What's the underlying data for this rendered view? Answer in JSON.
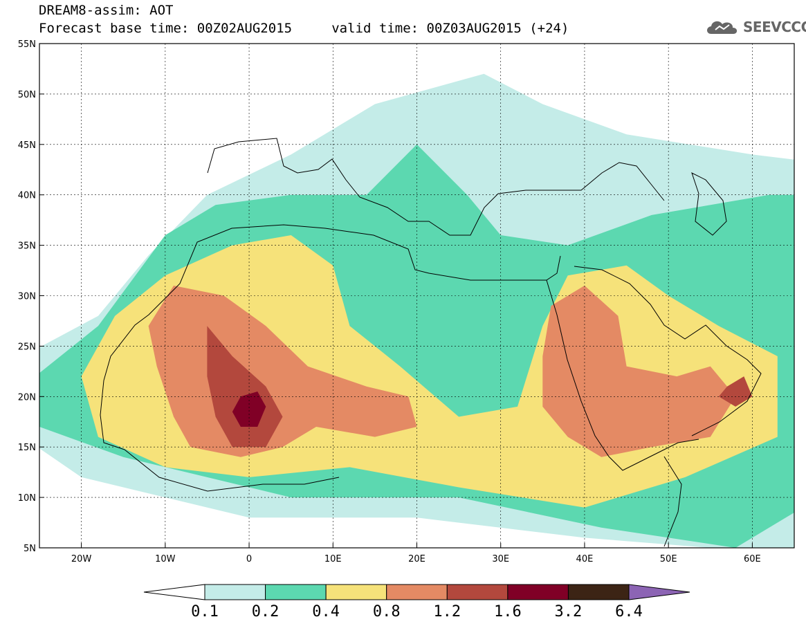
{
  "title": {
    "line1": "DREAM8-assim: AOT",
    "line2": "Forecast base time: 00Z02AUG2015     valid time: 00Z03AUG2015 (+24)"
  },
  "logo": {
    "text": "SEEVCCC",
    "icon": "cloud-icon"
  },
  "map": {
    "lon_range": [
      -25,
      65
    ],
    "lat_range": [
      5,
      55
    ],
    "x_ticks": [
      "20W",
      "10W",
      "0",
      "10E",
      "20E",
      "30E",
      "40E",
      "50E",
      "60E"
    ],
    "y_ticks": [
      "55N",
      "50N",
      "45N",
      "40N",
      "35N",
      "30N",
      "25N",
      "20N",
      "15N",
      "10N",
      "5N"
    ],
    "grid": true
  },
  "colorbar": {
    "labels": [
      "0.1",
      "0.2",
      "0.4",
      "0.8",
      "1.2",
      "1.6",
      "3.2",
      "6.4"
    ],
    "colors": [
      "#ffffff",
      "#c4ece8",
      "#5cd8b0",
      "#f6e27a",
      "#e48a64",
      "#b3483d",
      "#800026",
      "#3c2415",
      "#8c64b4"
    ]
  },
  "chart_data": {
    "type": "heatmap",
    "title": "DREAM8-assim: AOT",
    "subtitle": "Forecast base time: 00Z02AUG2015     valid time: 00Z03AUG2015 (+24)",
    "xlabel": "",
    "ylabel": "",
    "xlim": [
      -25,
      65
    ],
    "ylim": [
      5,
      55
    ],
    "levels": [
      0.1,
      0.2,
      0.4,
      0.8,
      1.2,
      1.6,
      3.2,
      6.4
    ],
    "regions": [
      {
        "level_index": 0,
        "name": "",
        "lonlat": [
          [
            -27,
            24
          ],
          [
            -18,
            28
          ],
          [
            -12,
            34
          ],
          [
            -5,
            40
          ],
          [
            5,
            44
          ],
          [
            15,
            49
          ],
          [
            28,
            52
          ],
          [
            35,
            49
          ],
          [
            45,
            46
          ],
          [
            60,
            44
          ],
          [
            70,
            43
          ],
          [
            70,
            5
          ],
          [
            55,
            5
          ],
          [
            40,
            6
          ],
          [
            20,
            8
          ],
          [
            0,
            8
          ],
          [
            -20,
            12
          ],
          [
            -27,
            16
          ]
        ]
      },
      {
        "level_index": 1,
        "name": "",
        "lonlat": [
          [
            -27,
            21
          ],
          [
            -18,
            27
          ],
          [
            -10,
            36
          ],
          [
            -4,
            39
          ],
          [
            5,
            40
          ],
          [
            14,
            40
          ],
          [
            20,
            45
          ],
          [
            26,
            40
          ],
          [
            30,
            36
          ],
          [
            38,
            35
          ],
          [
            48,
            38
          ],
          [
            62,
            40
          ],
          [
            68,
            40
          ],
          [
            68,
            10
          ],
          [
            58,
            5
          ],
          [
            42,
            7
          ],
          [
            25,
            10
          ],
          [
            5,
            10
          ],
          [
            -15,
            14
          ],
          [
            -25,
            17
          ]
        ]
      },
      {
        "level_index": 2,
        "name": "",
        "lonlat": [
          [
            -20,
            22
          ],
          [
            -16,
            28
          ],
          [
            -10,
            32
          ],
          [
            -2,
            35
          ],
          [
            5,
            36
          ],
          [
            10,
            33
          ],
          [
            12,
            27
          ],
          [
            18,
            23
          ],
          [
            25,
            18
          ],
          [
            32,
            19
          ],
          [
            35,
            27
          ],
          [
            38,
            32
          ],
          [
            45,
            33
          ],
          [
            50,
            30
          ],
          [
            56,
            27
          ],
          [
            63,
            24
          ],
          [
            63,
            16
          ],
          [
            52,
            12
          ],
          [
            40,
            9
          ],
          [
            25,
            11
          ],
          [
            12,
            13
          ],
          [
            0,
            12
          ],
          [
            -10,
            13
          ],
          [
            -18,
            16
          ]
        ]
      },
      {
        "level_index": 3,
        "name": "",
        "lonlat": [
          [
            -12,
            27
          ],
          [
            -9,
            31
          ],
          [
            -3,
            30
          ],
          [
            2,
            27
          ],
          [
            7,
            23
          ],
          [
            14,
            21
          ],
          [
            19,
            20
          ],
          [
            20,
            17
          ],
          [
            15,
            16
          ],
          [
            8,
            17
          ],
          [
            4,
            15
          ],
          [
            -1,
            14
          ],
          [
            -7,
            15
          ],
          [
            -9,
            18
          ],
          [
            -11,
            23
          ]
        ]
      },
      {
        "level_index": 3,
        "name": "",
        "lonlat": [
          [
            36,
            29
          ],
          [
            40,
            31
          ],
          [
            44,
            28
          ],
          [
            45,
            23
          ],
          [
            51,
            22
          ],
          [
            55,
            23
          ],
          [
            58,
            20
          ],
          [
            55,
            16
          ],
          [
            48,
            15
          ],
          [
            42,
            14
          ],
          [
            38,
            16
          ],
          [
            35,
            19
          ],
          [
            35,
            24
          ]
        ]
      },
      {
        "level_index": 4,
        "name": "",
        "lonlat": [
          [
            -5,
            27
          ],
          [
            -2,
            24
          ],
          [
            2,
            21
          ],
          [
            4,
            18
          ],
          [
            2,
            15
          ],
          [
            -2,
            15
          ],
          [
            -4,
            18
          ],
          [
            -5,
            22
          ]
        ]
      },
      {
        "level_index": 4,
        "name": "",
        "lonlat": [
          [
            57,
            21
          ],
          [
            59,
            22
          ],
          [
            60,
            20
          ],
          [
            58,
            19
          ],
          [
            56,
            20
          ]
        ]
      },
      {
        "level_index": 5,
        "name": "",
        "lonlat": [
          [
            -1,
            20
          ],
          [
            1,
            20.5
          ],
          [
            2,
            19
          ],
          [
            1,
            17
          ],
          [
            -1,
            17
          ],
          [
            -2,
            18.5
          ]
        ]
      }
    ]
  }
}
